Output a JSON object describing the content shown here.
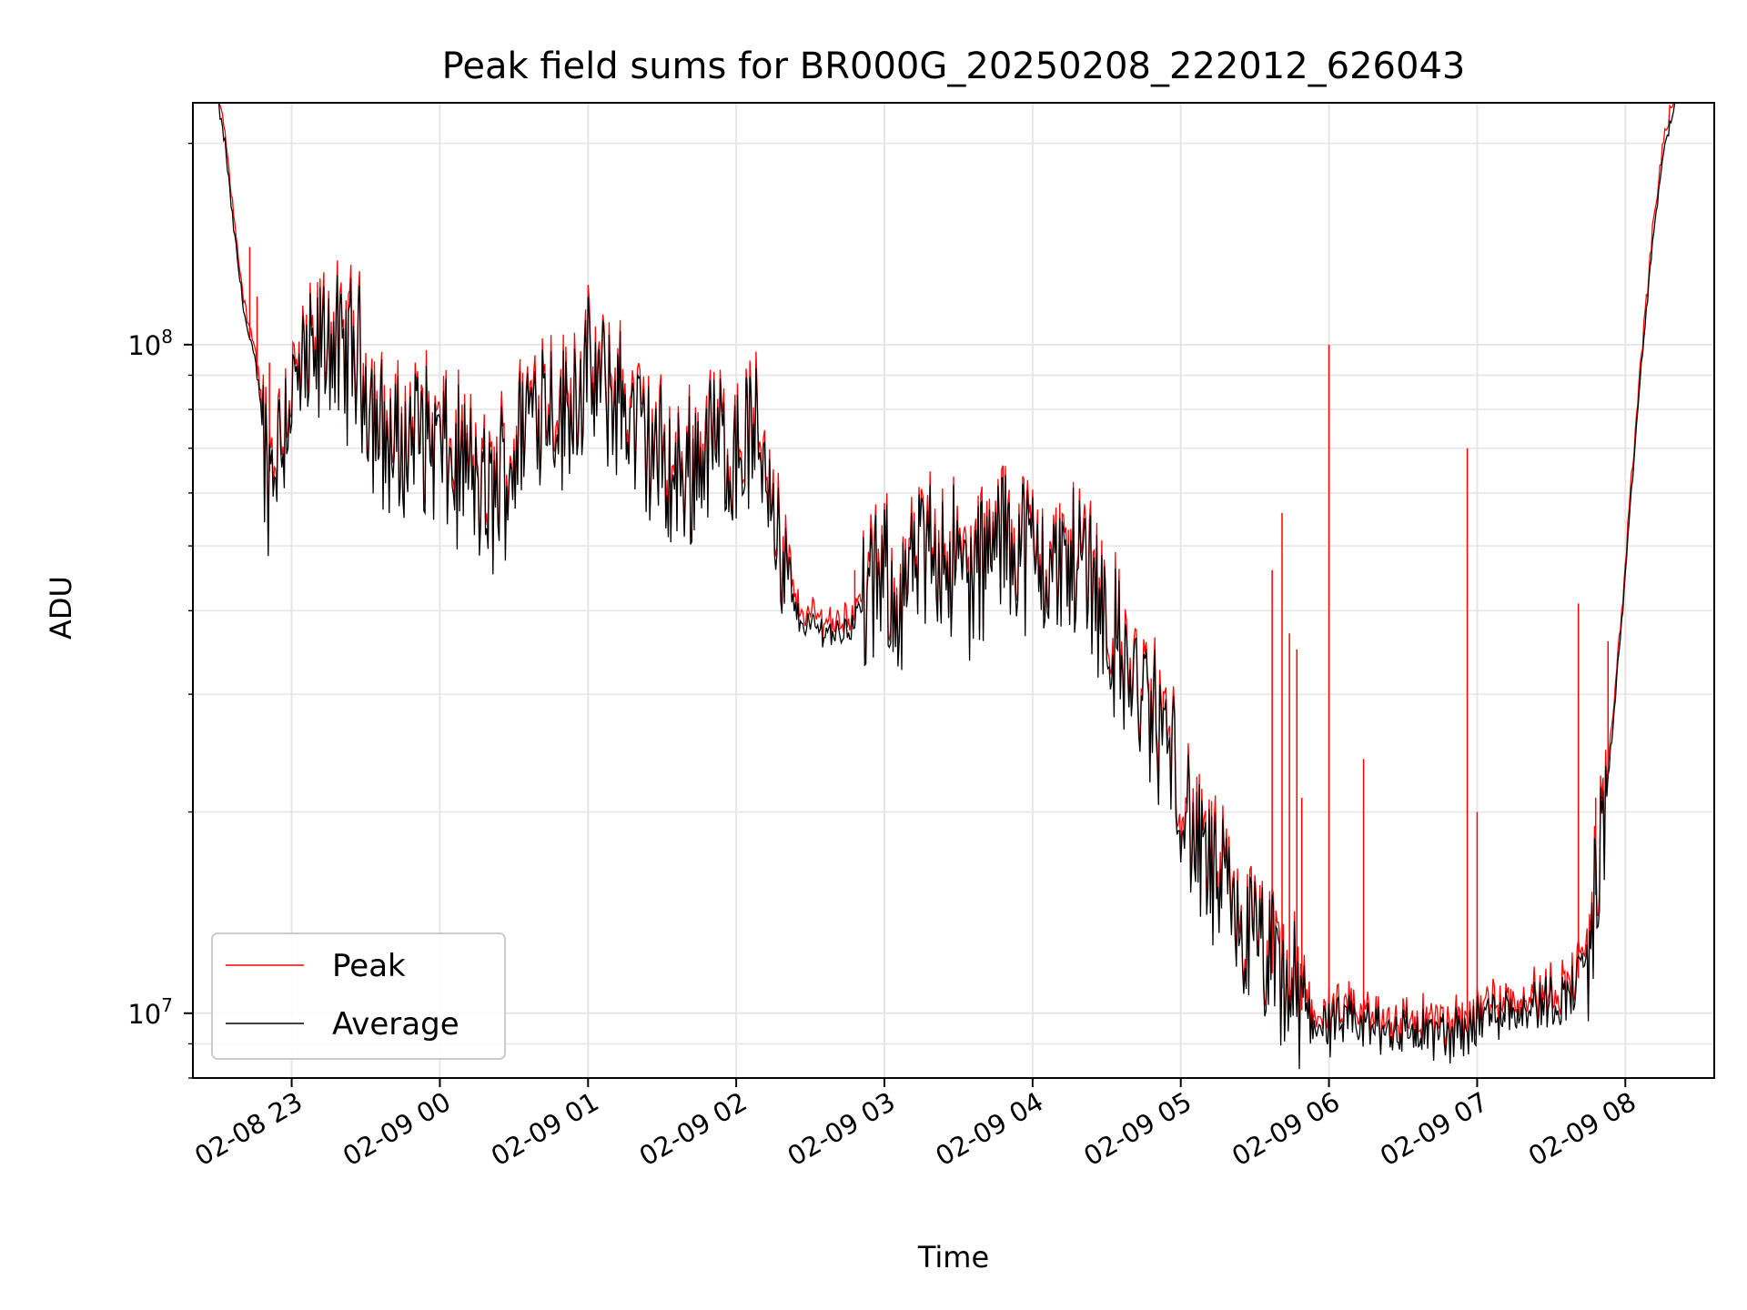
{
  "chart_data": {
    "type": "line",
    "title": "Peak field sums for BR000G_20250208_222012_626043",
    "xlabel": "Time",
    "ylabel": "ADU",
    "y_scale": "log",
    "ylim": [
      8000000,
      230000000
    ],
    "xlim": [
      "2025-02-08 22:20",
      "2025-02-09 08:36"
    ],
    "x_ticks": [
      {
        "t": "2025-02-08 23:00",
        "label": "02-08 23"
      },
      {
        "t": "2025-02-09 00:00",
        "label": "02-09 00"
      },
      {
        "t": "2025-02-09 01:00",
        "label": "02-09 01"
      },
      {
        "t": "2025-02-09 02:00",
        "label": "02-09 02"
      },
      {
        "t": "2025-02-09 03:00",
        "label": "02-09 03"
      },
      {
        "t": "2025-02-09 04:00",
        "label": "02-09 04"
      },
      {
        "t": "2025-02-09 05:00",
        "label": "02-09 05"
      },
      {
        "t": "2025-02-09 06:00",
        "label": "02-09 06"
      },
      {
        "t": "2025-02-09 07:00",
        "label": "02-09 07"
      },
      {
        "t": "2025-02-09 08:00",
        "label": "02-09 08"
      }
    ],
    "y_ticks": [
      {
        "value": 10000000,
        "base": "10",
        "exp": "7"
      },
      {
        "value": 100000000,
        "base": "10",
        "exp": "8"
      }
    ],
    "grid": true,
    "legend": {
      "position": "lower-left",
      "entries": [
        "Peak",
        "Average"
      ]
    },
    "series": [
      {
        "name": "Average",
        "color": "#000000",
        "points": [
          [
            "2025-02-08 22:30",
            230000000
          ],
          [
            "2025-02-08 22:33",
            200000000
          ],
          [
            "2025-02-08 22:36",
            155000000
          ],
          [
            "2025-02-08 22:39",
            125000000
          ],
          [
            "2025-02-08 22:42",
            105000000
          ],
          [
            "2025-02-08 22:45",
            95000000
          ],
          [
            "2025-02-08 22:48",
            80000000
          ],
          [
            "2025-02-08 22:50",
            63000000
          ],
          [
            "2025-02-08 22:53",
            68000000
          ],
          [
            "2025-02-08 22:56",
            75000000
          ],
          [
            "2025-02-08 23:00",
            84000000
          ],
          [
            "2025-02-08 23:05",
            88000000
          ],
          [
            "2025-02-08 23:10",
            92000000
          ],
          [
            "2025-02-08 23:15",
            105000000
          ],
          [
            "2025-02-08 23:20",
            92000000
          ],
          [
            "2025-02-08 23:25",
            98000000
          ],
          [
            "2025-02-08 23:30",
            88000000
          ],
          [
            "2025-02-08 23:35",
            75000000
          ],
          [
            "2025-02-08 23:40",
            70000000
          ],
          [
            "2025-02-08 23:45",
            68000000
          ],
          [
            "2025-02-08 23:50",
            75000000
          ],
          [
            "2025-02-08 23:55",
            72000000
          ],
          [
            "2025-02-09 00:00",
            70000000
          ],
          [
            "2025-02-09 00:05",
            64000000
          ],
          [
            "2025-02-09 00:10",
            66000000
          ],
          [
            "2025-02-09 00:15",
            60000000
          ],
          [
            "2025-02-09 00:20",
            57000000
          ],
          [
            "2025-02-09 00:25",
            63000000
          ],
          [
            "2025-02-09 00:30",
            68000000
          ],
          [
            "2025-02-09 00:35",
            78000000
          ],
          [
            "2025-02-09 00:40",
            84000000
          ],
          [
            "2025-02-09 00:45",
            83000000
          ],
          [
            "2025-02-09 00:50",
            76000000
          ],
          [
            "2025-02-09 00:55",
            86000000
          ],
          [
            "2025-02-09 01:00",
            88000000
          ],
          [
            "2025-02-09 01:05",
            85000000
          ],
          [
            "2025-02-09 01:10",
            84000000
          ],
          [
            "2025-02-09 01:15",
            80000000
          ],
          [
            "2025-02-09 01:20",
            74000000
          ],
          [
            "2025-02-09 01:25",
            70000000
          ],
          [
            "2025-02-09 01:30",
            66000000
          ],
          [
            "2025-02-09 01:35",
            62000000
          ],
          [
            "2025-02-09 01:40",
            64000000
          ],
          [
            "2025-02-09 01:45",
            68000000
          ],
          [
            "2025-02-09 01:50",
            72000000
          ],
          [
            "2025-02-09 01:55",
            70000000
          ],
          [
            "2025-02-09 02:00",
            68000000
          ],
          [
            "2025-02-09 02:05",
            72000000
          ],
          [
            "2025-02-09 02:10",
            70000000
          ],
          [
            "2025-02-09 02:15",
            62000000
          ],
          [
            "2025-02-09 02:18",
            44000000
          ],
          [
            "2025-02-09 02:22",
            42000000
          ],
          [
            "2025-02-09 02:25",
            39000000
          ],
          [
            "2025-02-09 02:30",
            38000000
          ],
          [
            "2025-02-09 02:35",
            37500000
          ],
          [
            "2025-02-09 02:40",
            37000000
          ],
          [
            "2025-02-09 02:45",
            37500000
          ],
          [
            "2025-02-09 02:50",
            40000000
          ],
          [
            "2025-02-09 02:55",
            42000000
          ],
          [
            "2025-02-09 03:00",
            44000000
          ],
          [
            "2025-02-09 03:05",
            41000000
          ],
          [
            "2025-02-09 03:10",
            44000000
          ],
          [
            "2025-02-09 03:15",
            47000000
          ],
          [
            "2025-02-09 03:20",
            50000000
          ],
          [
            "2025-02-09 03:25",
            49000000
          ],
          [
            "2025-02-09 03:30",
            46000000
          ],
          [
            "2025-02-09 03:35",
            44000000
          ],
          [
            "2025-02-09 03:40",
            46000000
          ],
          [
            "2025-02-09 03:45",
            50000000
          ],
          [
            "2025-02-09 03:50",
            52000000
          ],
          [
            "2025-02-09 03:55",
            50000000
          ],
          [
            "2025-02-09 04:00",
            48000000
          ],
          [
            "2025-02-09 04:05",
            47000000
          ],
          [
            "2025-02-09 04:10",
            45000000
          ],
          [
            "2025-02-09 04:15",
            47000000
          ],
          [
            "2025-02-09 04:20",
            48000000
          ],
          [
            "2025-02-09 04:25",
            45000000
          ],
          [
            "2025-02-09 04:30",
            38000000
          ],
          [
            "2025-02-09 04:35",
            34000000
          ],
          [
            "2025-02-09 04:40",
            31000000
          ],
          [
            "2025-02-09 04:45",
            29000000
          ],
          [
            "2025-02-09 04:50",
            27000000
          ],
          [
            "2025-02-09 04:55",
            25000000
          ],
          [
            "2025-02-09 05:00",
            21000000
          ],
          [
            "2025-02-09 05:05",
            18000000
          ],
          [
            "2025-02-09 05:10",
            16500000
          ],
          [
            "2025-02-09 05:15",
            15500000
          ],
          [
            "2025-02-09 05:20",
            14000000
          ],
          [
            "2025-02-09 05:25",
            13000000
          ],
          [
            "2025-02-09 05:30",
            12500000
          ],
          [
            "2025-02-09 05:35",
            11800000
          ],
          [
            "2025-02-09 05:40",
            11000000
          ],
          [
            "2025-02-09 05:45",
            10500000
          ],
          [
            "2025-02-09 05:50",
            10000000
          ],
          [
            "2025-02-09 05:55",
            9700000
          ],
          [
            "2025-02-09 06:00",
            9500000
          ],
          [
            "2025-02-09 06:10",
            9600000
          ],
          [
            "2025-02-09 06:20",
            9500000
          ],
          [
            "2025-02-09 06:30",
            9400000
          ],
          [
            "2025-02-09 06:40",
            9300000
          ],
          [
            "2025-02-09 06:50",
            9200000
          ],
          [
            "2025-02-09 06:55",
            9400000
          ],
          [
            "2025-02-09 07:00",
            9800000
          ],
          [
            "2025-02-09 07:05",
            10000000
          ],
          [
            "2025-02-09 07:15",
            10200000
          ],
          [
            "2025-02-09 07:25",
            10300000
          ],
          [
            "2025-02-09 07:35",
            10500000
          ],
          [
            "2025-02-09 07:40",
            11000000
          ],
          [
            "2025-02-09 07:45",
            12500000
          ],
          [
            "2025-02-09 07:50",
            17000000
          ],
          [
            "2025-02-09 07:55",
            27000000
          ],
          [
            "2025-02-09 08:00",
            45000000
          ],
          [
            "2025-02-09 08:05",
            80000000
          ],
          [
            "2025-02-09 08:10",
            130000000
          ],
          [
            "2025-02-09 08:15",
            190000000
          ],
          [
            "2025-02-09 08:20",
            230000000
          ]
        ]
      },
      {
        "name": "Peak",
        "color": "#ff0000",
        "spikes": [
          [
            "2025-02-08 22:43",
            140000000
          ],
          [
            "2025-02-08 22:46",
            118000000
          ],
          [
            "2025-02-08 22:51",
            94000000
          ],
          [
            "2025-02-09 02:48",
            46000000
          ],
          [
            "2025-02-09 05:37",
            46000000
          ],
          [
            "2025-02-09 05:41",
            56000000
          ],
          [
            "2025-02-09 05:44",
            37000000
          ],
          [
            "2025-02-09 05:47",
            35000000
          ],
          [
            "2025-02-09 05:49",
            21000000
          ],
          [
            "2025-02-09 06:00",
            100000000
          ],
          [
            "2025-02-09 06:14",
            24000000
          ],
          [
            "2025-02-09 06:56",
            70000000
          ],
          [
            "2025-02-09 07:00",
            20000000
          ],
          [
            "2025-02-09 07:41",
            41000000
          ],
          [
            "2025-02-09 07:48",
            21000000
          ],
          [
            "2025-02-09 07:53",
            36000000
          ]
        ]
      }
    ]
  }
}
